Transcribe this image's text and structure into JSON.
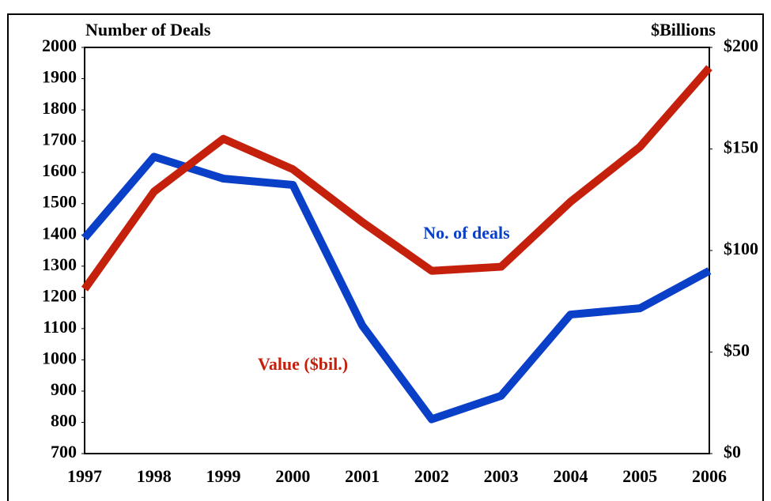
{
  "chart_data": {
    "type": "line",
    "ylabel": "Number of Deals",
    "y2label": "$Billions",
    "categories": [
      "1997",
      "1998",
      "1999",
      "2000",
      "2001",
      "2002",
      "2003",
      "2004",
      "2005",
      "2006"
    ],
    "series": [
      {
        "name": "No. of deals",
        "color": "#0a3fc8",
        "values": [
          1390,
          1650,
          1580,
          1560,
          1110,
          810,
          885,
          1145,
          1165,
          1285
        ]
      },
      {
        "name": "Value ($bil.)",
        "color": "#c4200c",
        "axis": "y2",
        "values": [
          81,
          129,
          155,
          140,
          114,
          90,
          92,
          124,
          151,
          190
        ]
      }
    ],
    "ylim": [
      700,
      2000
    ],
    "yticks": [
      700,
      800,
      900,
      1000,
      1100,
      1200,
      1300,
      1400,
      1500,
      1600,
      1700,
      1800,
      1900,
      2000
    ],
    "y2lim": [
      0,
      200
    ],
    "y2ticks": [
      {
        "value": 0,
        "label": "$0"
      },
      {
        "value": 50,
        "label": "$50"
      },
      {
        "value": 100,
        "label": "$100"
      },
      {
        "value": 150,
        "label": "$150"
      },
      {
        "value": 200,
        "label": "$200"
      }
    ],
    "grid": false
  }
}
